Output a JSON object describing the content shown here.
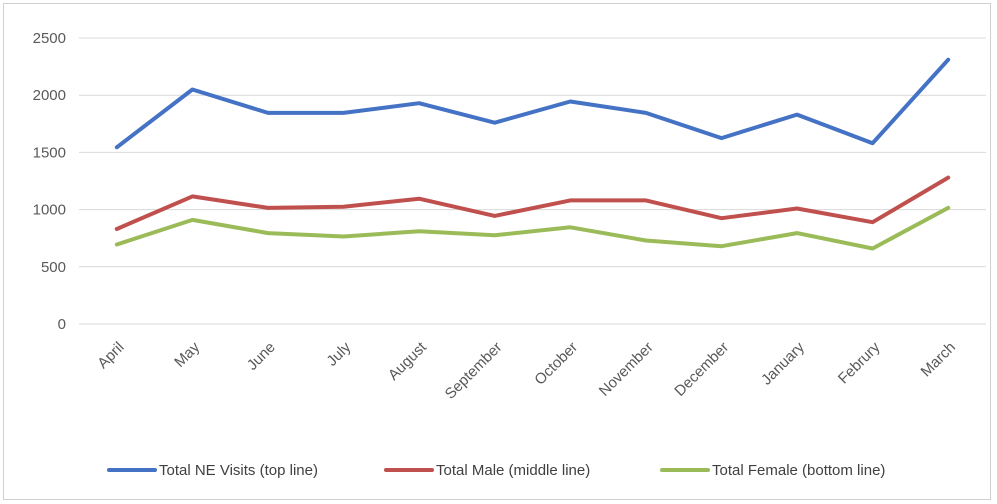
{
  "chart_data": {
    "type": "line",
    "title": "",
    "xlabel": "",
    "ylabel": "",
    "categories": [
      "April",
      "May",
      "June",
      "July",
      "August",
      "September",
      "October",
      "November",
      "December",
      "January",
      "Februry",
      "March"
    ],
    "ylim": [
      0,
      2500
    ],
    "yticks": [
      0,
      500,
      1000,
      1500,
      2000,
      2500
    ],
    "grid": true,
    "legend_position": "bottom",
    "series": [
      {
        "name": "Total NE Visits (top line)",
        "color": "#4472C4",
        "values": [
          1545,
          2050,
          1845,
          1845,
          1930,
          1760,
          1945,
          1845,
          1625,
          1830,
          1580,
          2310
        ]
      },
      {
        "name": "Total Male (middle line)",
        "color": "#C0504D",
        "values": [
          830,
          1115,
          1015,
          1025,
          1095,
          945,
          1080,
          1080,
          925,
          1010,
          890,
          1280
        ]
      },
      {
        "name": "Total Female (bottom line)",
        "color": "#9BBB59",
        "values": [
          695,
          910,
          795,
          765,
          810,
          775,
          845,
          730,
          680,
          795,
          660,
          1015
        ]
      }
    ]
  }
}
